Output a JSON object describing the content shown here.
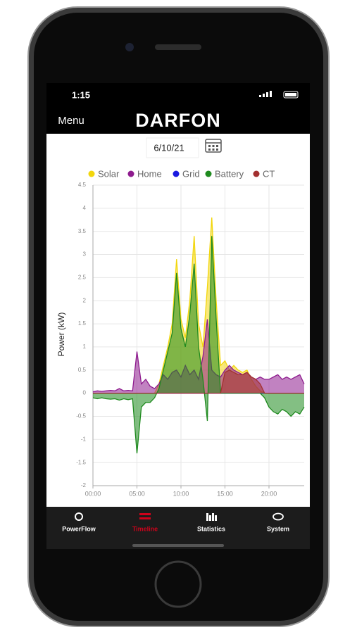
{
  "status_bar": {
    "time": "1:15"
  },
  "header": {
    "menu": "Menu",
    "logo": "DARFON"
  },
  "date": "6/10/21",
  "chart_data": {
    "type": "area",
    "y_label": "Power (kW)",
    "x": [
      0,
      0.5,
      1,
      1.5,
      2,
      2.5,
      3,
      3.5,
      4,
      4.5,
      5,
      5.5,
      6,
      6.5,
      7,
      7.5,
      8,
      8.5,
      9,
      9.5,
      10,
      10.5,
      11,
      11.5,
      12,
      12.5,
      13,
      13.5,
      14,
      14.5,
      15,
      15.5,
      16,
      16.5,
      17,
      17.5,
      18,
      18.5,
      19,
      19.5,
      20,
      20.5,
      21,
      21.5,
      22,
      22.5,
      23,
      23.5,
      24
    ],
    "series": [
      {
        "name": "Solar",
        "color": "#f2d60c",
        "values": [
          0,
          0,
          0,
          0,
          0,
          0,
          0,
          0,
          0,
          0,
          0,
          0,
          0,
          0,
          0,
          0.2,
          0.6,
          1.0,
          1.5,
          2.9,
          1.6,
          1.2,
          2.0,
          3.4,
          1.5,
          1.0,
          2.3,
          3.8,
          2.0,
          0.6,
          0.7,
          0.5,
          0.6,
          0.5,
          0.45,
          0.5,
          0.3,
          0.15,
          0.05,
          0,
          0,
          0,
          0,
          0,
          0,
          0,
          0,
          0,
          0
        ]
      },
      {
        "name": "Home",
        "color": "#8e1b8e",
        "values": [
          0.03,
          0.05,
          0.04,
          0.05,
          0.06,
          0.05,
          0.1,
          0.05,
          0.06,
          0.05,
          0.9,
          0.2,
          0.3,
          0.15,
          0.1,
          0.2,
          0.4,
          0.3,
          0.45,
          0.5,
          0.35,
          0.6,
          0.4,
          0.5,
          0.3,
          0.8,
          1.6,
          0.5,
          0.4,
          0.35,
          0.5,
          0.6,
          0.5,
          0.45,
          0.4,
          0.45,
          0.35,
          0.3,
          0.35,
          0.3,
          0.3,
          0.35,
          0.4,
          0.3,
          0.35,
          0.3,
          0.35,
          0.4,
          0.2
        ]
      },
      {
        "name": "Grid",
        "color": "#1a1ae0",
        "values": [
          0,
          0,
          0,
          0,
          0,
          0,
          0,
          0,
          0,
          0,
          0,
          0,
          0,
          0,
          0,
          0,
          0,
          0,
          0,
          0,
          0,
          0,
          0,
          0,
          0,
          0,
          0,
          0,
          0,
          0,
          0,
          0,
          0,
          0,
          0,
          0,
          0,
          0,
          0,
          0,
          0,
          0,
          0,
          0,
          0,
          0,
          0,
          0,
          0
        ]
      },
      {
        "name": "Battery",
        "color": "#1e8a1e",
        "values": [
          -0.1,
          -0.12,
          -0.1,
          -0.12,
          -0.13,
          -0.12,
          -0.15,
          -0.12,
          -0.14,
          -0.12,
          -1.3,
          -0.3,
          -0.2,
          -0.2,
          -0.1,
          0.1,
          0.5,
          0.9,
          1.3,
          2.6,
          1.4,
          1.0,
          1.7,
          2.8,
          1.0,
          0.3,
          -0.6,
          3.4,
          1.6,
          0,
          0,
          0,
          0,
          0,
          0,
          0,
          0,
          0,
          0,
          -0.1,
          -0.3,
          -0.4,
          -0.45,
          -0.35,
          -0.4,
          -0.5,
          -0.4,
          -0.45,
          -0.3
        ]
      },
      {
        "name": "CT",
        "color": "#a33030",
        "values": [
          0,
          0,
          0,
          0,
          0,
          0,
          0,
          0,
          0,
          0,
          0,
          0,
          0,
          0,
          0,
          0,
          0,
          0,
          0,
          0,
          0,
          0,
          0,
          0,
          0,
          0,
          0,
          0,
          0,
          0,
          0.45,
          0.5,
          0.45,
          0.4,
          0.4,
          0.45,
          0.35,
          0.3,
          0.2,
          0,
          0,
          0,
          0,
          0,
          0,
          0,
          0,
          0,
          0
        ]
      }
    ],
    "xlim": [
      0,
      24
    ],
    "xticks": [
      {
        "value": 0,
        "label": "00:00"
      },
      {
        "value": 5,
        "label": "05:00"
      },
      {
        "value": 10,
        "label": "10:00"
      },
      {
        "value": 15,
        "label": "15:00"
      },
      {
        "value": 20,
        "label": "20:00"
      }
    ],
    "ylim": [
      -2,
      4.5
    ],
    "yticks": [
      4.5,
      4,
      3.5,
      3,
      2.5,
      2,
      1.5,
      1,
      0.5,
      0,
      -0.5,
      -1,
      -1.5,
      -2
    ],
    "grid": true
  },
  "tabs": [
    {
      "label": "PowerFlow",
      "active": false
    },
    {
      "label": "Timeline",
      "active": true
    },
    {
      "label": "Statistics",
      "active": false
    },
    {
      "label": "System",
      "active": false
    }
  ]
}
